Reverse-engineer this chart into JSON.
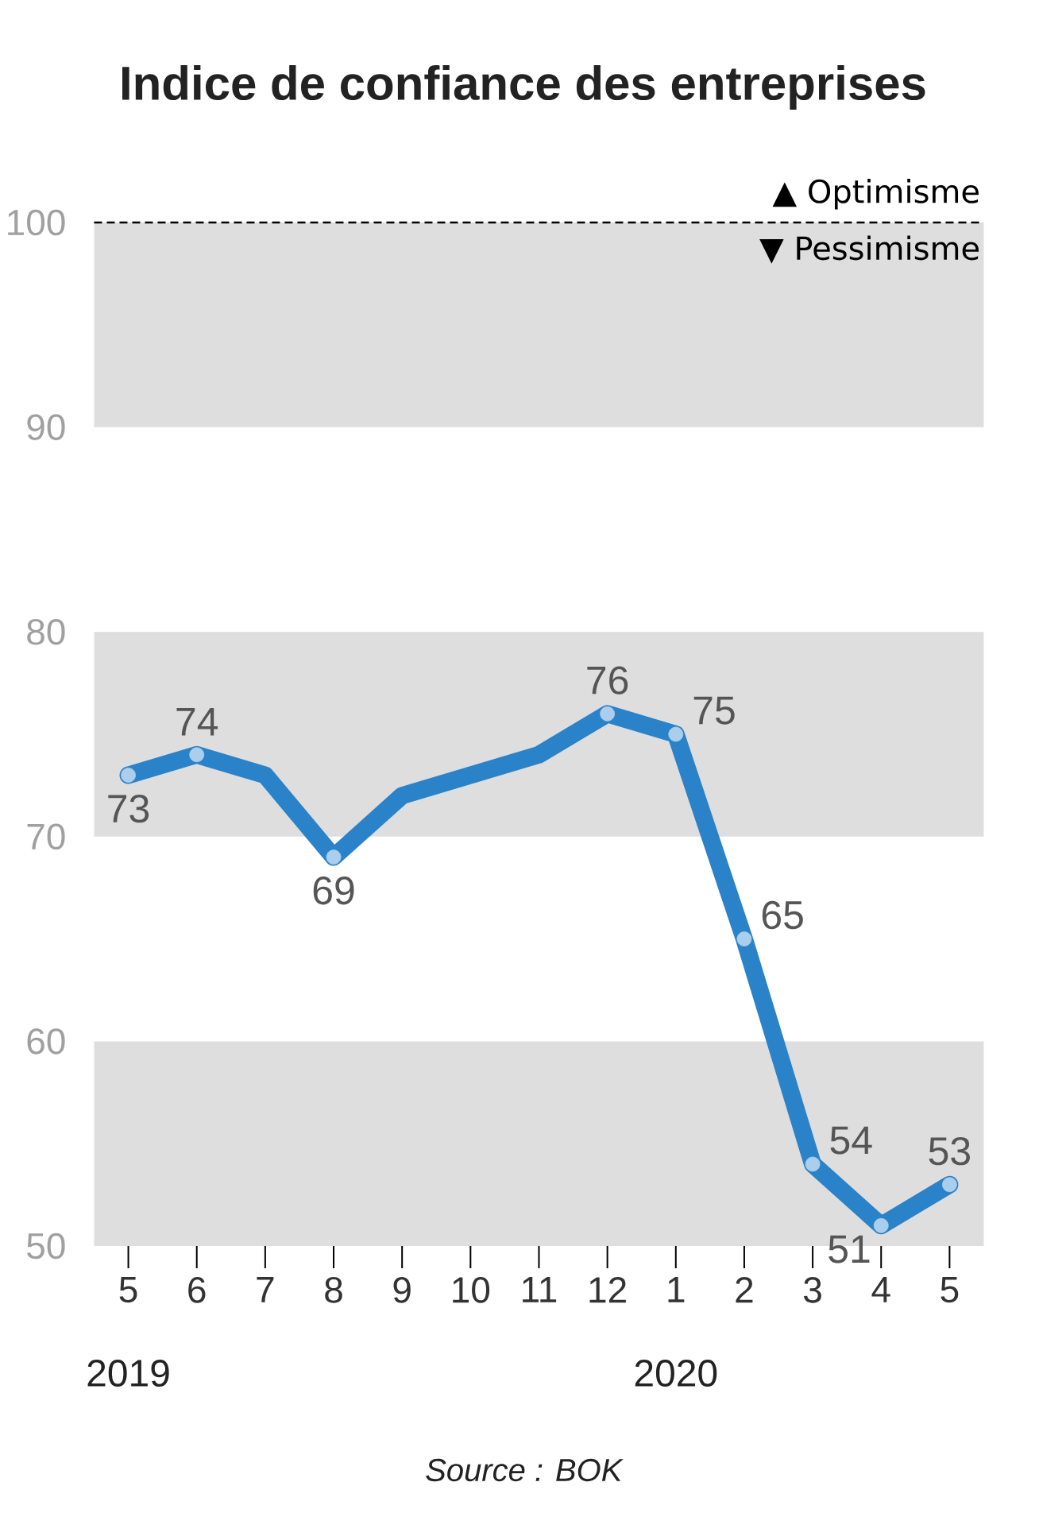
{
  "chart_data": {
    "type": "line",
    "title": "Indice de confiance des entreprises",
    "x": [
      "2019-05",
      "2019-06",
      "2019-07",
      "2019-08",
      "2019-09",
      "2019-10",
      "2019-11",
      "2019-12",
      "2020-01",
      "2020-02",
      "2020-03",
      "2020-04",
      "2020-05"
    ],
    "xticks": [
      {
        "value": "2019-05",
        "label": "5"
      },
      {
        "value": "2019-06",
        "label": "6"
      },
      {
        "value": "2019-07",
        "label": "7"
      },
      {
        "value": "2019-08",
        "label": "8"
      },
      {
        "value": "2019-09",
        "label": "9"
      },
      {
        "value": "2019-10",
        "label": "10"
      },
      {
        "value": "2019-11",
        "label": "11"
      },
      {
        "value": "2019-12",
        "label": "12"
      },
      {
        "value": "2020-01",
        "label": "1"
      },
      {
        "value": "2020-02",
        "label": "2"
      },
      {
        "value": "2020-03",
        "label": "3"
      },
      {
        "value": "2020-04",
        "label": "4"
      },
      {
        "value": "2020-05",
        "label": "5"
      }
    ],
    "values": [
      73,
      74,
      73,
      69,
      72,
      73,
      74,
      76,
      75,
      65,
      54,
      51,
      53
    ],
    "value_labels": [
      "73",
      "74",
      null,
      "69",
      null,
      null,
      null,
      "76",
      "75",
      "65",
      "54",
      "51",
      "53"
    ],
    "color": "#2a82c8",
    "marker": "circle",
    "line_style": "solid",
    "xlim": [
      "2019-05",
      "2020-05"
    ],
    "ylim": [
      50,
      100
    ],
    "yticks": [
      50,
      60,
      70,
      80,
      90,
      100
    ],
    "grid": false,
    "bands": [
      {
        "axis": "y",
        "from": 50,
        "to": 60,
        "color": "#dedede"
      },
      {
        "axis": "y",
        "from": 70,
        "to": 80,
        "color": "#dedede"
      },
      {
        "axis": "y",
        "from": 90,
        "to": 100,
        "color": "#dedede"
      }
    ],
    "ref_lines": [
      {
        "axis": "y",
        "value": 100,
        "label": "▲ Optimisme",
        "color": "#000000",
        "line_style": "dashed"
      }
    ],
    "annotations": [
      "2019",
      "2020",
      "▼ Pessimisme",
      "Source : BOK"
    ]
  }
}
